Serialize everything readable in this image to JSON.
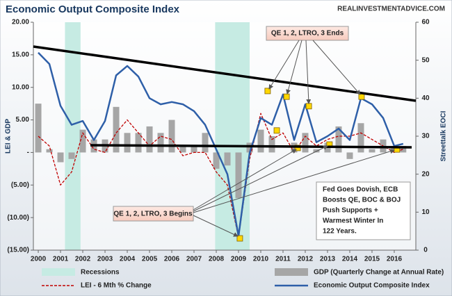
{
  "chart_data": {
    "type": "combo",
    "title": "Economic Output Composite Index",
    "source": "REALINVESTMENTADVICE.COM",
    "y_label": "LEI & GDP",
    "y2_label": "Streettalk EOCI",
    "xlim": [
      1999.78,
      2016.97
    ],
    "xticks": [
      2000,
      2001,
      2002,
      2003,
      2004,
      2005,
      2006,
      2007,
      2008,
      2009,
      2010,
      2011,
      2012,
      2013,
      2014,
      2015,
      2016
    ],
    "ylim": [
      -15,
      20
    ],
    "yticks": [
      {
        "value": -15,
        "label": "(15.00)"
      },
      {
        "value": -10,
        "label": "(10.00)"
      },
      {
        "value": -5,
        "label": "(5.00)"
      },
      {
        "value": 0,
        "label": "-"
      },
      {
        "value": 5,
        "label": "5.00"
      },
      {
        "value": 10,
        "label": "10.00"
      },
      {
        "value": 15,
        "label": "15.00"
      },
      {
        "value": 20,
        "label": "20.00"
      }
    ],
    "y2lim": [
      0,
      60
    ],
    "y2ticks": [
      0,
      10,
      20,
      30,
      40,
      50,
      60
    ],
    "recessions": {
      "name": "Recessions",
      "color": "#c6ebe3",
      "ranges": [
        [
          2001.2,
          2001.9
        ],
        [
          2007.95,
          2009.5
        ]
      ]
    },
    "x": [
      2000,
      2000.5,
      2001,
      2001.5,
      2002,
      2002.5,
      2003,
      2003.5,
      2004,
      2004.5,
      2005,
      2005.5,
      2006,
      2006.5,
      2007,
      2007.5,
      2008,
      2008.5,
      2009,
      2009.5,
      2010,
      2010.5,
      2011,
      2011.5,
      2012,
      2012.5,
      2013,
      2013.5,
      2014,
      2014.5,
      2015,
      2015.5,
      2016,
      2016.4
    ],
    "series": [
      {
        "name": "GDP (Quarterly Change at Annual Rate)",
        "type": "bar",
        "color": "#a6a6a6",
        "axis": "y",
        "values": [
          7.5,
          0.5,
          -1.5,
          -1,
          3.5,
          2,
          2,
          7,
          3,
          3,
          4,
          3,
          5,
          1,
          1,
          3,
          -2.5,
          -2,
          -7,
          1.5,
          3.5,
          2.5,
          0,
          1.5,
          3,
          0.5,
          1.5,
          4,
          -1,
          4.5,
          0.5,
          2,
          1,
          1
        ]
      },
      {
        "name": "LEI - 6 Mth % Change",
        "type": "line",
        "dash": true,
        "color": "#c00000",
        "axis": "y",
        "values": [
          2.5,
          1,
          -5,
          -3,
          3,
          0.5,
          0,
          3,
          5,
          3,
          1,
          2.5,
          2,
          -0.5,
          0,
          0,
          -3,
          -5,
          -13,
          -1,
          6,
          2,
          3,
          0,
          2.5,
          1,
          2,
          2.5,
          2.5,
          3,
          2,
          1,
          0,
          0.5
        ]
      },
      {
        "name": "Economic Output Composite Index",
        "type": "line",
        "dash": false,
        "color": "#2e5fa8",
        "axis": "y2",
        "values": [
          52,
          49,
          38,
          33,
          34,
          29,
          34,
          46,
          48.5,
          45.7,
          40,
          38.4,
          39,
          38.4,
          36.6,
          33,
          26.5,
          20,
          3.7,
          25.6,
          34.8,
          33,
          41,
          29,
          38.4,
          28.4,
          30,
          32,
          29,
          40,
          38.4,
          34.8,
          27.4,
          28
        ]
      }
    ],
    "markers": {
      "color": "#ffd700",
      "axis": "y2",
      "x": [
        2009.06,
        2010.31,
        2010.72,
        2011.16,
        2011.66,
        2012.16,
        2013.09,
        2014.53,
        2016.12
      ],
      "values": [
        3.1,
        41.9,
        31.5,
        40.4,
        26.9,
        37.9,
        27.8,
        40.4,
        26.5
      ]
    },
    "annotations": {
      "qe_ends": "QE 1, 2, LTRO, 3 Ends",
      "qe_begins": "QE 1, 2, LTRO, 3 Begins",
      "fed": [
        "Fed Goes Dovish, ECB",
        "Boosts QE, BOC & BOJ",
        "Push Supports +",
        "Warmest Winter In",
        "122 Years."
      ]
    }
  }
}
